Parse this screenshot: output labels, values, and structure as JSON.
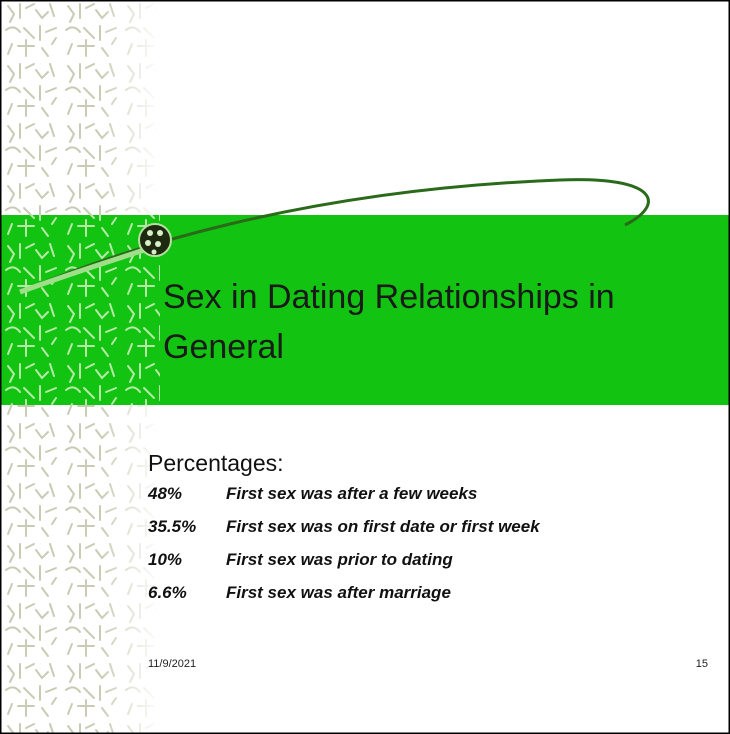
{
  "slide": {
    "title": "Sex in Dating Relationships in General",
    "list_heading": "Percentages:",
    "items": [
      {
        "percent": "48%",
        "text": "First sex was after a few weeks"
      },
      {
        "percent": "35.5%",
        "text": "First sex was on first date or first week"
      },
      {
        "percent": "10%",
        "text": "First sex was prior to dating"
      },
      {
        "percent": "6.6%",
        "text": "First sex was after marriage"
      }
    ],
    "footer": {
      "date": "11/9/2021",
      "page": "15"
    }
  }
}
